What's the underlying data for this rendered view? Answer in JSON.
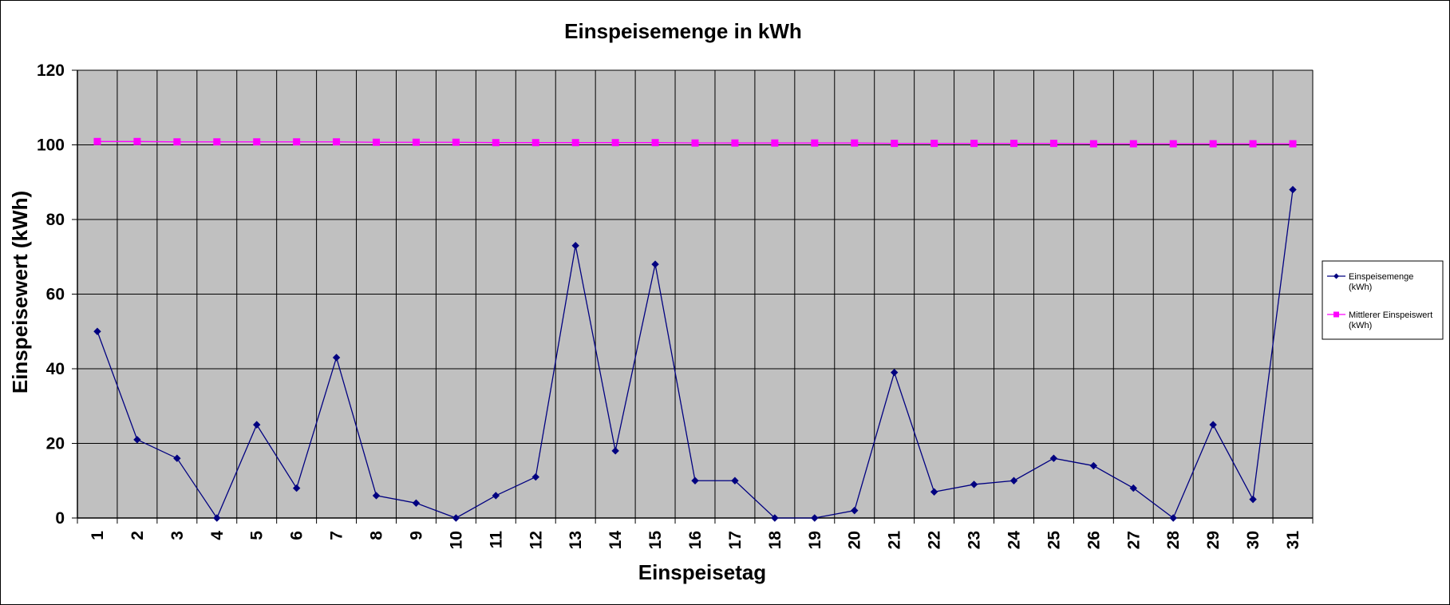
{
  "chart_data": {
    "type": "line",
    "title": "Einspeisemenge in kWh",
    "xlabel": "Einspeisetag",
    "ylabel": "Einspeisewert  (kWh)",
    "categories": [
      "1",
      "2",
      "3",
      "4",
      "5",
      "6",
      "7",
      "8",
      "9",
      "10",
      "11",
      "12",
      "13",
      "14",
      "15",
      "16",
      "17",
      "18",
      "19",
      "20",
      "21",
      "22",
      "23",
      "24",
      "25",
      "26",
      "27",
      "28",
      "29",
      "30",
      "31"
    ],
    "ylim": [
      0,
      120
    ],
    "yticks": [
      "0",
      "20",
      "40",
      "60",
      "80",
      "100",
      "120"
    ],
    "grid": true,
    "legend_position": "right",
    "plot_background": "#c0c0c0",
    "series": [
      {
        "name": "Einspeisemenge (kWh)",
        "legend_lines": [
          "Einspeisemenge",
          "(kWh)"
        ],
        "color": "#000080",
        "marker": "diamond",
        "values": [
          50,
          21,
          16,
          0,
          25,
          8,
          43,
          6,
          4,
          0,
          6,
          11,
          73,
          18,
          68,
          10,
          10,
          0,
          0,
          2,
          39,
          7,
          9,
          10,
          16,
          14,
          8,
          0,
          25,
          5,
          88
        ]
      },
      {
        "name": "Mittlerer Einspeiswert (kWh)",
        "legend_lines": [
          "Mittlerer Einspeiswert",
          "(kWh)"
        ],
        "color": "#ff00ff",
        "marker": "square",
        "values": [
          100.9,
          100.9,
          100.8,
          100.8,
          100.8,
          100.8,
          100.8,
          100.7,
          100.7,
          100.7,
          100.6,
          100.6,
          100.6,
          100.6,
          100.6,
          100.5,
          100.5,
          100.5,
          100.5,
          100.5,
          100.4,
          100.4,
          100.4,
          100.4,
          100.4,
          100.3,
          100.3,
          100.3,
          100.3,
          100.3,
          100.3
        ]
      }
    ]
  }
}
